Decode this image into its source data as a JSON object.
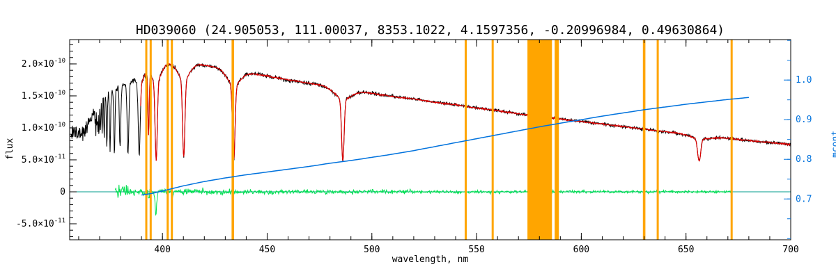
{
  "chart_data": {
    "type": "line",
    "title": "HD039060  (24.905053, 111.00037, 8353.1022, 4.1597356, -0.20996984, 0.49630864)",
    "xlabel": "wavelength, nm",
    "ylabel_left": "flux",
    "ylabel_right": "mcont",
    "xlim": [
      355.7,
      700
    ],
    "ylim_left": [
      -7.5e-11,
      2.38e-10
    ],
    "ylim_right": [
      0.597,
      1.102
    ],
    "x_major_ticks": [
      400,
      450,
      500,
      550,
      600,
      650,
      700
    ],
    "x_minor_step": 10,
    "y_left_ticks": [
      {
        "v": -5e-11,
        "m": "-5.0×10",
        "e": "-11"
      },
      {
        "v": 0,
        "m": "0",
        "e": ""
      },
      {
        "v": 5e-11,
        "m": "5.0×10",
        "e": "-11"
      },
      {
        "v": 1e-10,
        "m": "1.0×10",
        "e": "-10"
      },
      {
        "v": 1.5e-10,
        "m": "1.5×10",
        "e": "-10"
      },
      {
        "v": 2e-10,
        "m": "2.0×10",
        "e": "-10"
      }
    ],
    "y_right_ticks": [
      {
        "v": 0.7,
        "label": "0.7"
      },
      {
        "v": 0.8,
        "label": "0.8"
      },
      {
        "v": 0.9,
        "label": "0.9"
      },
      {
        "v": 1.0,
        "label": "1.0"
      }
    ],
    "colors": {
      "observed": "#000000",
      "model": "#dd0000",
      "residual": "#00e050",
      "zero_line": "#009e8e",
      "mcont": "#0072dd",
      "right_axis": "#0072dd",
      "mask": "#ffa500",
      "axis": "#000000",
      "background": "#ffffff"
    },
    "series": {
      "observed": {
        "name": "observed spectrum",
        "x_range": [
          356,
          700
        ]
      },
      "model": {
        "name": "model fit",
        "x_range": [
          389.5,
          700
        ]
      },
      "residual": {
        "name": "fit residual",
        "x_range": [
          377.5,
          672
        ]
      },
      "mcont": {
        "name": "normalized continuum mcont",
        "axis": "right",
        "points": [
          [
            390,
            0.71
          ],
          [
            395,
            0.714
          ],
          [
            400,
            0.72
          ],
          [
            410,
            0.733
          ],
          [
            420,
            0.744
          ],
          [
            430,
            0.753
          ],
          [
            440,
            0.761
          ],
          [
            450,
            0.768
          ],
          [
            460,
            0.775
          ],
          [
            470,
            0.782
          ],
          [
            480,
            0.79
          ],
          [
            490,
            0.797
          ],
          [
            500,
            0.805
          ],
          [
            510,
            0.813
          ],
          [
            520,
            0.822
          ],
          [
            530,
            0.832
          ],
          [
            540,
            0.842
          ],
          [
            550,
            0.852
          ],
          [
            560,
            0.862
          ],
          [
            570,
            0.872
          ],
          [
            580,
            0.882
          ],
          [
            590,
            0.891
          ],
          [
            600,
            0.9
          ],
          [
            610,
            0.909
          ],
          [
            620,
            0.917
          ],
          [
            630,
            0.925
          ],
          [
            640,
            0.932
          ],
          [
            650,
            0.939
          ],
          [
            660,
            0.945
          ],
          [
            670,
            0.951
          ],
          [
            680,
            0.956
          ]
        ]
      }
    },
    "continuum_points": [
      [
        356,
        8.8e-11
      ],
      [
        359,
        9e-11
      ],
      [
        362,
        9.6e-11
      ],
      [
        365,
        1.08e-10
      ],
      [
        368,
        1.28e-10
      ],
      [
        371,
        1.45e-10
      ],
      [
        374,
        1.58e-10
      ],
      [
        377,
        1.68e-10
      ],
      [
        380,
        1.76e-10
      ],
      [
        383,
        1.81e-10
      ],
      [
        386,
        1.86e-10
      ],
      [
        390,
        1.9e-10
      ],
      [
        394,
        1.94e-10
      ],
      [
        398,
        1.98e-10
      ],
      [
        403,
        2.01e-10
      ],
      [
        408,
        2.02e-10
      ],
      [
        414,
        2.01e-10
      ],
      [
        420,
        1.98e-10
      ],
      [
        427,
        1.94e-10
      ],
      [
        434,
        1.9e-10
      ],
      [
        441,
        1.86e-10
      ],
      [
        450,
        1.81e-10
      ],
      [
        460,
        1.75e-10
      ],
      [
        470,
        1.7e-10
      ],
      [
        480,
        1.65e-10
      ],
      [
        490,
        1.59e-10
      ],
      [
        500,
        1.54e-10
      ],
      [
        510,
        1.49e-10
      ],
      [
        520,
        1.45e-10
      ],
      [
        530,
        1.4e-10
      ],
      [
        540,
        1.36e-10
      ],
      [
        550,
        1.31e-10
      ],
      [
        560,
        1.27e-10
      ],
      [
        570,
        1.22e-10
      ],
      [
        580,
        1.18e-10
      ],
      [
        590,
        1.14e-10
      ],
      [
        600,
        1.1e-10
      ],
      [
        610,
        1.06e-10
      ],
      [
        620,
        1.02e-10
      ],
      [
        630,
        9.8e-11
      ],
      [
        640,
        9.4e-11
      ],
      [
        650,
        9.1e-11
      ],
      [
        660,
        8.7e-11
      ],
      [
        670,
        8.4e-11
      ],
      [
        680,
        8e-11
      ],
      [
        690,
        7.7e-11
      ],
      [
        700,
        7.4e-11
      ]
    ],
    "absorption_lines": [
      {
        "c": 656.28,
        "d": 0.4,
        "s": 0.75,
        "wd": 0.06,
        "ws": 5.0
      },
      {
        "c": 486.13,
        "d": 0.6,
        "s": 0.6,
        "wd": 0.1,
        "ws": 4.0
      },
      {
        "c": 434.05,
        "d": 0.62,
        "s": 0.6,
        "wd": 0.12,
        "ws": 3.2
      },
      {
        "c": 410.17,
        "d": 0.6,
        "s": 0.55,
        "wd": 0.13,
        "ws": 2.8
      },
      {
        "c": 397.01,
        "d": 0.62,
        "s": 0.5,
        "wd": 0.13,
        "ws": 2.2
      },
      {
        "c": 393.37,
        "d": 0.5,
        "s": 0.3
      },
      {
        "c": 388.91,
        "d": 0.58,
        "s": 0.45,
        "wd": 0.12,
        "ws": 1.8
      },
      {
        "c": 383.54,
        "d": 0.58,
        "s": 0.38,
        "wd": 0.1,
        "ws": 1.4
      },
      {
        "c": 379.79,
        "d": 0.56,
        "s": 0.32,
        "wd": 0.09,
        "ws": 1.1
      },
      {
        "c": 377.06,
        "d": 0.54,
        "s": 0.27,
        "wd": 0.08,
        "ws": 0.9
      },
      {
        "c": 375.02,
        "d": 0.52,
        "s": 0.23,
        "wd": 0.07,
        "ws": 0.7
      },
      {
        "c": 373.44,
        "d": 0.49,
        "s": 0.2,
        "wd": 0.06,
        "ws": 0.6
      },
      {
        "c": 372.19,
        "d": 0.46,
        "s": 0.18
      },
      {
        "c": 371.2,
        "d": 0.42,
        "s": 0.16
      },
      {
        "c": 370.39,
        "d": 0.38,
        "s": 0.15
      },
      {
        "c": 369.72,
        "d": 0.34,
        "s": 0.14
      },
      {
        "c": 369.15,
        "d": 0.3,
        "s": 0.13
      },
      {
        "c": 368.67,
        "d": 0.27,
        "s": 0.12
      },
      {
        "c": 368.26,
        "d": 0.24,
        "s": 0.12
      },
      {
        "c": 367.91,
        "d": 0.21,
        "s": 0.11
      }
    ],
    "residual_spikes": [
      {
        "c": 396.9,
        "a": -3.6e-11,
        "s": 0.35
      },
      {
        "c": 393.4,
        "a": -1e-11,
        "s": 0.3
      },
      {
        "c": 404.8,
        "a": -8e-12,
        "s": 0.3
      },
      {
        "c": 434.0,
        "a": -6e-12,
        "s": 0.3
      }
    ],
    "noise": {
      "observed": [
        [
          364,
          1.1e-11
        ],
        [
          372,
          8e-12
        ],
        [
          380,
          5e-12
        ],
        [
          400,
          3e-12
        ],
        [
          500,
          2.2e-12
        ],
        [
          10000,
          1.8e-12
        ]
      ],
      "model": 8e-13,
      "residual": [
        [
          385,
          6e-12
        ],
        [
          430,
          3.5e-12
        ],
        [
          520,
          2.5e-12
        ],
        [
          10000,
          1.6e-12
        ]
      ]
    },
    "mask_bands": [
      [
        391.8,
        392.8
      ],
      [
        393.9,
        394.9
      ],
      [
        402.0,
        403.0
      ],
      [
        404.0,
        405.0
      ],
      [
        433.0,
        434.2
      ],
      [
        544.3,
        545.3
      ],
      [
        557.2,
        558.2
      ],
      [
        574.3,
        586.0
      ],
      [
        587.3,
        589.3
      ],
      [
        629.4,
        630.6
      ],
      [
        636.0,
        637.0
      ],
      [
        671.3,
        672.3
      ]
    ],
    "legend": "none",
    "grid": false
  }
}
